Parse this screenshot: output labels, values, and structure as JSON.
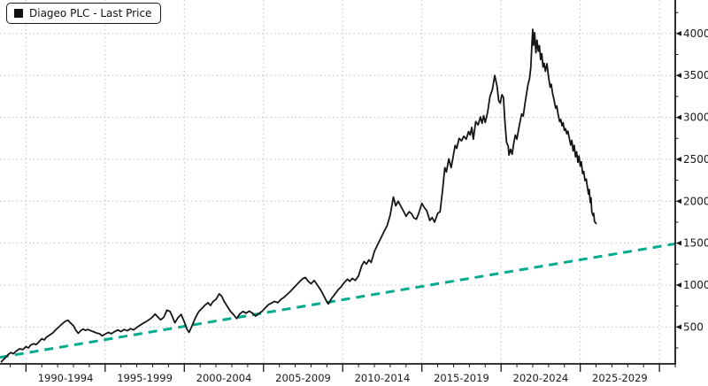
{
  "legend": {
    "series_label": "Diageo PLC - Last Price",
    "swatch_color": "#111111"
  },
  "colors": {
    "price_line": "#161616",
    "trend_line": "#00AA8C",
    "grid": "#b6b6b6",
    "axis": "#1a1a1a",
    "background": "#ffffff",
    "label_text": "#1a1a1a"
  },
  "chart_data": {
    "type": "line",
    "title": "",
    "xlabel": "",
    "ylabel": "",
    "grid": "dotted",
    "legend_position": "top-left",
    "x_axis": {
      "range": [
        1988.36,
        2031.0
      ],
      "major_ticks": [
        1990,
        1995,
        2000,
        2005,
        2010,
        2015,
        2020,
        2025,
        2030
      ],
      "minor_tick_interval": 1,
      "band_labels": [
        {
          "label": "1990-1994",
          "center": 1992.5
        },
        {
          "label": "1995-1999",
          "center": 1997.5
        },
        {
          "label": "2000-2004",
          "center": 2002.5
        },
        {
          "label": "2005-2009",
          "center": 2007.5
        },
        {
          "label": "2010-2014",
          "center": 2012.5
        },
        {
          "label": "2015-2019",
          "center": 2017.5
        },
        {
          "label": "2020-2024",
          "center": 2022.5
        },
        {
          "label": "2025-2029",
          "center": 2027.5
        }
      ]
    },
    "y_axis": {
      "side": "right",
      "range": [
        60,
        4400
      ],
      "major_ticks": [
        500,
        1000,
        1500,
        2000,
        2500,
        3000,
        3500,
        4000
      ],
      "minor_tick_interval": 250
    },
    "series": [
      {
        "name": "Diageo PLC - Last Price",
        "style": "solid",
        "color": "#161616",
        "points": [
          [
            1988.45,
            85
          ],
          [
            1988.6,
            115
          ],
          [
            1988.75,
            145
          ],
          [
            1988.9,
            175
          ],
          [
            1989.05,
            195
          ],
          [
            1989.2,
            180
          ],
          [
            1989.4,
            215
          ],
          [
            1989.6,
            240
          ],
          [
            1989.8,
            230
          ],
          [
            1990.0,
            265
          ],
          [
            1990.15,
            250
          ],
          [
            1990.3,
            285
          ],
          [
            1990.5,
            300
          ],
          [
            1990.65,
            290
          ],
          [
            1990.8,
            320
          ],
          [
            1991.0,
            360
          ],
          [
            1991.15,
            345
          ],
          [
            1991.3,
            380
          ],
          [
            1991.5,
            405
          ],
          [
            1991.7,
            430
          ],
          [
            1991.9,
            470
          ],
          [
            1992.1,
            505
          ],
          [
            1992.3,
            540
          ],
          [
            1992.5,
            570
          ],
          [
            1992.65,
            580
          ],
          [
            1992.8,
            550
          ],
          [
            1993.0,
            515
          ],
          [
            1993.15,
            460
          ],
          [
            1993.3,
            425
          ],
          [
            1993.45,
            455
          ],
          [
            1993.6,
            475
          ],
          [
            1993.75,
            460
          ],
          [
            1993.9,
            470
          ],
          [
            1994.1,
            455
          ],
          [
            1994.3,
            440
          ],
          [
            1994.5,
            425
          ],
          [
            1994.65,
            420
          ],
          [
            1994.8,
            395
          ],
          [
            1995.0,
            415
          ],
          [
            1995.2,
            435
          ],
          [
            1995.4,
            420
          ],
          [
            1995.6,
            445
          ],
          [
            1995.8,
            465
          ],
          [
            1996.0,
            445
          ],
          [
            1996.2,
            470
          ],
          [
            1996.4,
            455
          ],
          [
            1996.6,
            480
          ],
          [
            1996.8,
            465
          ],
          [
            1997.0,
            495
          ],
          [
            1997.2,
            520
          ],
          [
            1997.4,
            545
          ],
          [
            1997.6,
            565
          ],
          [
            1997.8,
            590
          ],
          [
            1998.0,
            620
          ],
          [
            1998.15,
            655
          ],
          [
            1998.3,
            625
          ],
          [
            1998.5,
            585
          ],
          [
            1998.7,
            615
          ],
          [
            1998.9,
            700
          ],
          [
            1999.1,
            685
          ],
          [
            1999.25,
            620
          ],
          [
            1999.4,
            550
          ],
          [
            1999.6,
            610
          ],
          [
            1999.8,
            650
          ],
          [
            2000.0,
            560
          ],
          [
            2000.15,
            480
          ],
          [
            2000.3,
            435
          ],
          [
            2000.5,
            520
          ],
          [
            2000.7,
            610
          ],
          [
            2000.9,
            680
          ],
          [
            2001.1,
            720
          ],
          [
            2001.3,
            760
          ],
          [
            2001.5,
            790
          ],
          [
            2001.65,
            755
          ],
          [
            2001.8,
            800
          ],
          [
            2002.0,
            830
          ],
          [
            2002.2,
            895
          ],
          [
            2002.35,
            870
          ],
          [
            2002.5,
            810
          ],
          [
            2002.7,
            750
          ],
          [
            2002.9,
            690
          ],
          [
            2003.1,
            650
          ],
          [
            2003.3,
            600
          ],
          [
            2003.5,
            655
          ],
          [
            2003.7,
            685
          ],
          [
            2003.9,
            665
          ],
          [
            2004.1,
            690
          ],
          [
            2004.3,
            665
          ],
          [
            2004.5,
            630
          ],
          [
            2004.7,
            660
          ],
          [
            2004.9,
            685
          ],
          [
            2005.1,
            725
          ],
          [
            2005.3,
            765
          ],
          [
            2005.5,
            785
          ],
          [
            2005.7,
            805
          ],
          [
            2005.9,
            790
          ],
          [
            2006.1,
            830
          ],
          [
            2006.3,
            855
          ],
          [
            2006.5,
            890
          ],
          [
            2006.7,
            925
          ],
          [
            2006.9,
            965
          ],
          [
            2007.1,
            1005
          ],
          [
            2007.3,
            1045
          ],
          [
            2007.5,
            1080
          ],
          [
            2007.65,
            1090
          ],
          [
            2007.8,
            1050
          ],
          [
            2008.0,
            1015
          ],
          [
            2008.2,
            1055
          ],
          [
            2008.4,
            1000
          ],
          [
            2008.6,
            945
          ],
          [
            2008.8,
            875
          ],
          [
            2009.0,
            800
          ],
          [
            2009.1,
            775
          ],
          [
            2009.3,
            840
          ],
          [
            2009.5,
            890
          ],
          [
            2009.7,
            940
          ],
          [
            2009.9,
            980
          ],
          [
            2010.1,
            1030
          ],
          [
            2010.3,
            1070
          ],
          [
            2010.45,
            1045
          ],
          [
            2010.6,
            1080
          ],
          [
            2010.8,
            1055
          ],
          [
            2011.0,
            1110
          ],
          [
            2011.2,
            1230
          ],
          [
            2011.35,
            1280
          ],
          [
            2011.5,
            1250
          ],
          [
            2011.65,
            1300
          ],
          [
            2011.8,
            1270
          ],
          [
            2012.0,
            1400
          ],
          [
            2012.2,
            1480
          ],
          [
            2012.4,
            1555
          ],
          [
            2012.6,
            1635
          ],
          [
            2012.8,
            1705
          ],
          [
            2013.0,
            1835
          ],
          [
            2013.2,
            2050
          ],
          [
            2013.35,
            1945
          ],
          [
            2013.5,
            2000
          ],
          [
            2013.7,
            1930
          ],
          [
            2013.9,
            1860
          ],
          [
            2014.0,
            1820
          ],
          [
            2014.2,
            1875
          ],
          [
            2014.35,
            1850
          ],
          [
            2014.5,
            1800
          ],
          [
            2014.65,
            1785
          ],
          [
            2014.8,
            1855
          ],
          [
            2015.0,
            1975
          ],
          [
            2015.15,
            1925
          ],
          [
            2015.3,
            1890
          ],
          [
            2015.5,
            1770
          ],
          [
            2015.65,
            1805
          ],
          [
            2015.8,
            1750
          ],
          [
            2016.0,
            1855
          ],
          [
            2016.15,
            1875
          ],
          [
            2016.3,
            2120
          ],
          [
            2016.45,
            2400
          ],
          [
            2016.55,
            2350
          ],
          [
            2016.7,
            2505
          ],
          [
            2016.85,
            2400
          ],
          [
            2017.0,
            2560
          ],
          [
            2017.1,
            2665
          ],
          [
            2017.2,
            2630
          ],
          [
            2017.35,
            2750
          ],
          [
            2017.5,
            2720
          ],
          [
            2017.65,
            2775
          ],
          [
            2017.8,
            2740
          ],
          [
            2017.95,
            2830
          ],
          [
            2018.05,
            2790
          ],
          [
            2018.15,
            2880
          ],
          [
            2018.25,
            2740
          ],
          [
            2018.4,
            2950
          ],
          [
            2018.55,
            2910
          ],
          [
            2018.7,
            3005
          ],
          [
            2018.8,
            2930
          ],
          [
            2018.9,
            3020
          ],
          [
            2019.0,
            2940
          ],
          [
            2019.15,
            3060
          ],
          [
            2019.3,
            3250
          ],
          [
            2019.45,
            3330
          ],
          [
            2019.6,
            3500
          ],
          [
            2019.75,
            3370
          ],
          [
            2019.85,
            3200
          ],
          [
            2019.95,
            3170
          ],
          [
            2020.05,
            3270
          ],
          [
            2020.15,
            3240
          ],
          [
            2020.25,
            2930
          ],
          [
            2020.35,
            2700
          ],
          [
            2020.45,
            2660
          ],
          [
            2020.5,
            2550
          ],
          [
            2020.6,
            2620
          ],
          [
            2020.7,
            2560
          ],
          [
            2020.8,
            2690
          ],
          [
            2020.9,
            2790
          ],
          [
            2021.0,
            2740
          ],
          [
            2021.15,
            2900
          ],
          [
            2021.3,
            3040
          ],
          [
            2021.4,
            3015
          ],
          [
            2021.5,
            3150
          ],
          [
            2021.6,
            3270
          ],
          [
            2021.7,
            3390
          ],
          [
            2021.8,
            3465
          ],
          [
            2021.88,
            3600
          ],
          [
            2021.95,
            3880
          ],
          [
            2022.0,
            4050
          ],
          [
            2022.05,
            3860
          ],
          [
            2022.12,
            4010
          ],
          [
            2022.2,
            3770
          ],
          [
            2022.27,
            3920
          ],
          [
            2022.35,
            3790
          ],
          [
            2022.42,
            3855
          ],
          [
            2022.5,
            3690
          ],
          [
            2022.57,
            3760
          ],
          [
            2022.65,
            3600
          ],
          [
            2022.72,
            3645
          ],
          [
            2022.8,
            3550
          ],
          [
            2022.9,
            3640
          ],
          [
            2023.0,
            3480
          ],
          [
            2023.1,
            3360
          ],
          [
            2023.17,
            3395
          ],
          [
            2023.25,
            3290
          ],
          [
            2023.35,
            3205
          ],
          [
            2023.45,
            3110
          ],
          [
            2023.52,
            3135
          ],
          [
            2023.6,
            3040
          ],
          [
            2023.7,
            2950
          ],
          [
            2023.77,
            2975
          ],
          [
            2023.85,
            2900
          ],
          [
            2023.92,
            2935
          ],
          [
            2024.0,
            2845
          ],
          [
            2024.07,
            2865
          ],
          [
            2024.15,
            2805
          ],
          [
            2024.22,
            2835
          ],
          [
            2024.3,
            2760
          ],
          [
            2024.4,
            2670
          ],
          [
            2024.47,
            2725
          ],
          [
            2024.55,
            2600
          ],
          [
            2024.62,
            2665
          ],
          [
            2024.7,
            2530
          ],
          [
            2024.77,
            2590
          ],
          [
            2024.85,
            2465
          ],
          [
            2024.92,
            2540
          ],
          [
            2025.0,
            2420
          ],
          [
            2025.07,
            2470
          ],
          [
            2025.15,
            2330
          ],
          [
            2025.22,
            2355
          ],
          [
            2025.3,
            2245
          ],
          [
            2025.38,
            2265
          ],
          [
            2025.45,
            2170
          ],
          [
            2025.52,
            2085
          ],
          [
            2025.57,
            2140
          ],
          [
            2025.63,
            1985
          ],
          [
            2025.68,
            2040
          ],
          [
            2025.73,
            1875
          ],
          [
            2025.8,
            1830
          ],
          [
            2025.85,
            1855
          ],
          [
            2025.9,
            1760
          ],
          [
            2025.95,
            1745
          ],
          [
            2026.0,
            1735
          ]
        ]
      },
      {
        "name": "Trendline",
        "style": "dashed",
        "color": "#00AA8C",
        "points": [
          [
            1988.36,
            138
          ],
          [
            2031.0,
            1492
          ]
        ]
      }
    ]
  }
}
